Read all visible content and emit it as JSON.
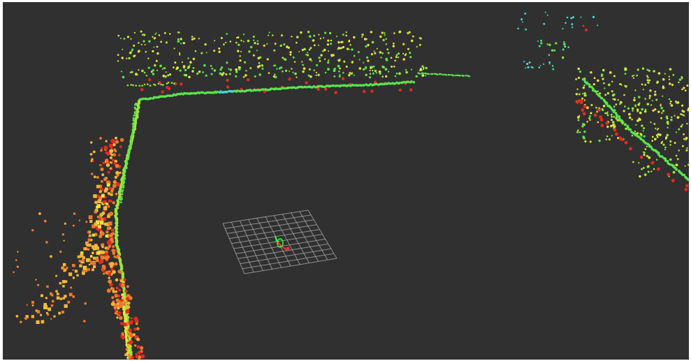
{
  "window": {
    "background_color": "#303030",
    "frame_color": "#ffffff"
  },
  "grid": {
    "cells": 10,
    "line_color": "#a0a0a0"
  },
  "point_cloud": {
    "colormap": [
      "#e62b1e",
      "#f07a2a",
      "#f5b83a",
      "#e4e63c",
      "#9be43f",
      "#58e64c",
      "#3fe39c",
      "#47d7d6"
    ]
  },
  "robot": {
    "axes": [
      "x-axis",
      "y-axis",
      "z-axis"
    ],
    "axis_colors": [
      "#ff3030",
      "#30ff30",
      "#3050ff"
    ]
  }
}
